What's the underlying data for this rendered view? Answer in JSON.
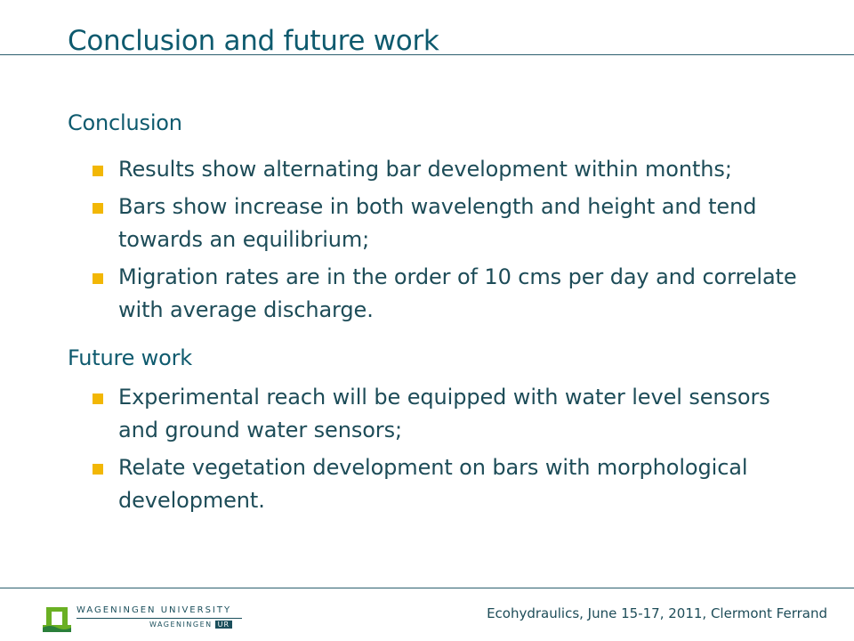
{
  "slide": {
    "title": "Conclusion and future work"
  },
  "sections": [
    {
      "heading": "Conclusion",
      "bullets": [
        "Results show alternating bar development within months;",
        "Bars show increase in both wavelength and height and tend towards an equilibrium;",
        "Migration rates are in the order of 10 cms per day and correlate with average discharge."
      ]
    },
    {
      "heading": "Future work",
      "bullets": [
        "Experimental reach will be equipped with water level sensors and ground water sensors;",
        "Relate vegetation development on bars with morphological development."
      ]
    }
  ],
  "footer": {
    "logo_line1": "WAGENINGEN UNIVERSITY",
    "logo_line2": "WAGENINGEN",
    "logo_badge": "UR",
    "event": "Ecohydraulics, June 15-17, 2011, Clermont Ferrand"
  },
  "colors": {
    "accent": "#f2b705",
    "text": "#1d4c58",
    "title": "#0e5a6e",
    "logo_green": "#6ab023"
  }
}
